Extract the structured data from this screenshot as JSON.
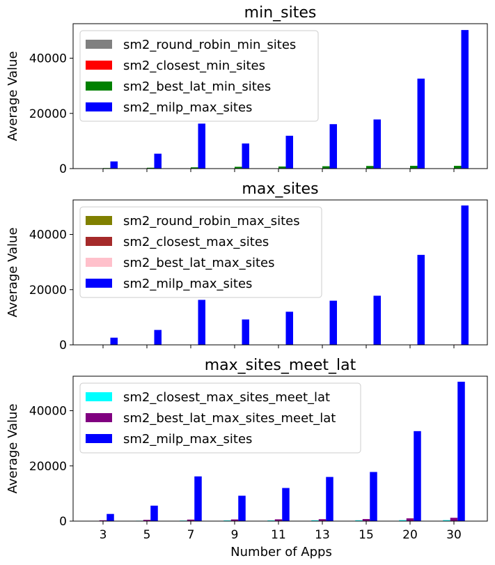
{
  "figure": {
    "xlabel": "Number of Apps",
    "ylabel": "Average Value"
  },
  "chart_data": [
    {
      "type": "bar",
      "title": "min_sites",
      "categories": [
        "3",
        "5",
        "7",
        "9",
        "11",
        "13",
        "15",
        "20",
        "30"
      ],
      "ylim": [
        0,
        52500
      ],
      "yticks": [
        0,
        20000,
        40000
      ],
      "ytick_labels": [
        "0",
        "20000",
        "40000"
      ],
      "legend": "upper-left",
      "series": [
        {
          "name": "sm2_round_robin_min_sites",
          "color": "#808080",
          "values": [
            0,
            0,
            0,
            0,
            0,
            0,
            0,
            0,
            0
          ]
        },
        {
          "name": "sm2_closest_min_sites",
          "color": "#ff0000",
          "values": [
            0,
            0,
            0,
            0,
            0,
            0,
            0,
            0,
            0
          ]
        },
        {
          "name": "sm2_best_lat_min_sites",
          "color": "#008000",
          "values": [
            200,
            300,
            450,
            650,
            750,
            850,
            950,
            1000,
            1000
          ]
        },
        {
          "name": "sm2_milp_max_sites",
          "color": "#0000ff",
          "values": [
            2600,
            5400,
            16300,
            9100,
            11900,
            16100,
            17800,
            32600,
            50200
          ]
        }
      ]
    },
    {
      "type": "bar",
      "title": "max_sites",
      "categories": [
        "3",
        "5",
        "7",
        "9",
        "11",
        "13",
        "15",
        "20",
        "30"
      ],
      "ylim": [
        0,
        52500
      ],
      "yticks": [
        0,
        20000,
        40000
      ],
      "ytick_labels": [
        "0",
        "20000",
        "40000"
      ],
      "legend": "upper-left",
      "series": [
        {
          "name": "sm2_round_robin_max_sites",
          "color": "#808000",
          "values": [
            0,
            0,
            0,
            0,
            0,
            0,
            0,
            0,
            0
          ]
        },
        {
          "name": "sm2_closest_max_sites",
          "color": "#a52a2a",
          "values": [
            0,
            0,
            0,
            0,
            0,
            0,
            0,
            0,
            0
          ]
        },
        {
          "name": "sm2_best_lat_max_sites",
          "color": "#ffc0cb",
          "values": [
            30,
            40,
            60,
            80,
            100,
            120,
            130,
            150,
            170
          ]
        },
        {
          "name": "sm2_milp_max_sites",
          "color": "#0000ff",
          "values": [
            2600,
            5400,
            16300,
            9200,
            12000,
            16000,
            17800,
            32600,
            50500
          ]
        }
      ]
    },
    {
      "type": "bar",
      "title": "max_sites_meet_lat",
      "categories": [
        "3",
        "5",
        "7",
        "9",
        "11",
        "13",
        "15",
        "20",
        "30"
      ],
      "ylim": [
        0,
        52500
      ],
      "yticks": [
        0,
        20000,
        40000
      ],
      "ytick_labels": [
        "0",
        "20000",
        "40000"
      ],
      "legend": "upper-left",
      "series": [
        {
          "name": "sm2_closest_max_sites_meet_lat",
          "color": "#00ffff",
          "values": [
            100,
            150,
            200,
            250,
            250,
            300,
            300,
            350,
            350
          ]
        },
        {
          "name": "sm2_best_lat_max_sites_meet_lat",
          "color": "#800080",
          "values": [
            300,
            450,
            550,
            600,
            650,
            700,
            750,
            1000,
            1200
          ]
        },
        {
          "name": "sm2_milp_max_sites",
          "color": "#0000ff",
          "values": [
            2600,
            5600,
            16200,
            9200,
            12000,
            16000,
            17800,
            32600,
            50500
          ]
        }
      ]
    }
  ]
}
